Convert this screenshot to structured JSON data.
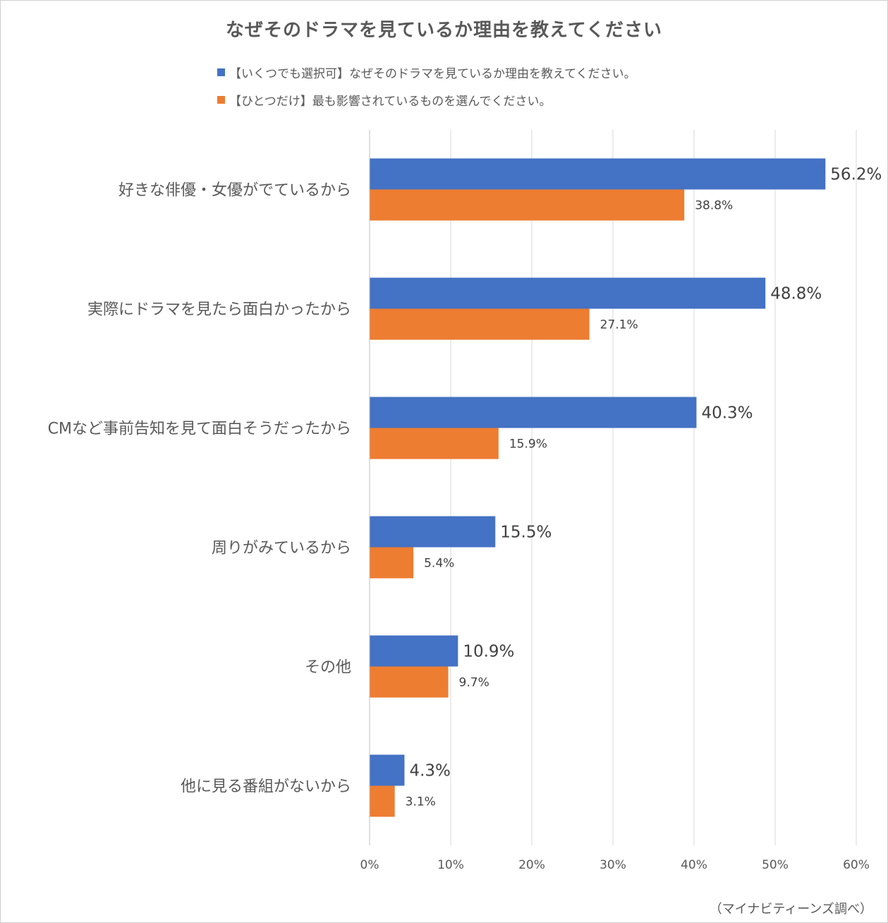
{
  "chart_data": {
    "type": "bar",
    "orientation": "horizontal",
    "title": "なぜそのドラマを見ているか理由を教えてください",
    "categories": [
      "好きな俳優・女優がでているから",
      "実際にドラマを見たら面白かったから",
      "CMなど事前告知を見て面白そうだったから",
      "周りがみているから",
      "その他",
      "他に見る番組がないから"
    ],
    "series": [
      {
        "name": "【いくつでも選択可】なぜそのドラマを見ているか理由を教えてください。",
        "color": "#4472c4",
        "values": [
          56.2,
          48.8,
          40.3,
          15.5,
          10.9,
          4.3
        ],
        "labels": [
          "56.2%",
          "48.8%",
          "40.3%",
          "15.5%",
          "10.9%",
          "4.3%"
        ]
      },
      {
        "name": "【ひとつだけ】最も影響されているものを選んでください。",
        "color": "#ed7d31",
        "values": [
          38.8,
          27.1,
          15.9,
          5.4,
          9.7,
          3.1
        ],
        "labels": [
          "38.8%",
          "27.1%",
          "15.9%",
          "5.4%",
          "9.7%",
          "3.1%"
        ]
      }
    ],
    "xlim": [
      0,
      60
    ],
    "xticks": [
      0,
      10,
      20,
      30,
      40,
      50,
      60
    ],
    "xtick_labels": [
      "0%",
      "10%",
      "20%",
      "30%",
      "40%",
      "50%",
      "60%"
    ],
    "grid": "vertical",
    "legend_position": "top",
    "source": "（マイナビティーンズ調べ）"
  }
}
